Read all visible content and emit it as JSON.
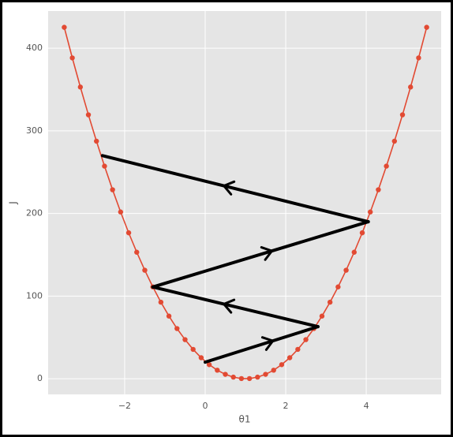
{
  "chart_data": {
    "type": "line",
    "x_label": "θ1",
    "y_label": "J",
    "x": [
      -3.5,
      -3.3,
      -3.1,
      -2.9,
      -2.7,
      -2.5,
      -2.3,
      -2.1,
      -1.9,
      -1.7,
      -1.5,
      -1.3,
      -1.1,
      -0.9,
      -0.7,
      -0.5,
      -0.3,
      -0.1,
      0.1,
      0.3,
      0.5,
      0.7,
      0.9,
      1.1,
      1.3,
      1.5,
      1.7,
      1.9,
      2.1,
      2.3,
      2.5,
      2.7,
      2.9,
      3.1,
      3.3,
      3.5,
      3.7,
      3.9,
      4.1,
      4.3,
      4.5,
      4.7,
      4.9,
      5.1,
      5.3,
      5.5
    ],
    "series": [
      {
        "name": "J",
        "color": "#e24a33",
        "values": [
          425.3,
          388.3,
          353,
          319.4,
          287.5,
          257.3,
          228.7,
          201.8,
          176.6,
          153.1,
          131.3,
          111.1,
          92.6,
          75.8,
          60.7,
          47.3,
          35.5,
          25.4,
          17,
          10.3,
          5.3,
          1.9,
          0.2,
          0.2,
          1.9,
          5.3,
          10.3,
          17,
          25.4,
          35.5,
          47.3,
          60.7,
          75.8,
          92.6,
          111.1,
          131.3,
          153.1,
          176.6,
          201.8,
          228.7,
          257.3,
          287.5,
          319.4,
          353,
          388.3,
          425.3
        ]
      }
    ],
    "steps": {
      "color": "#000000",
      "x": [
        0,
        2.8,
        -1.3,
        4.05,
        -2.55
      ],
      "values": [
        20,
        63,
        111,
        190,
        270
      ]
    },
    "xlim": [
      -3.9,
      5.86
    ],
    "ylim": [
      -19,
      445
    ],
    "xticks": [
      {
        "value": -2,
        "label": "−2"
      },
      0,
      2,
      4
    ],
    "yticks": [
      0,
      100,
      200,
      300,
      400
    ],
    "grid": true
  }
}
